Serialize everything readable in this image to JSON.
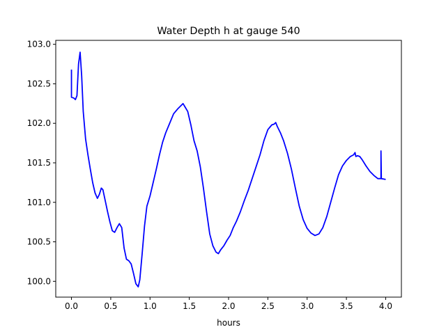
{
  "chart_data": {
    "type": "line",
    "title": "Water Depth h at gauge 540",
    "xlabel": "hours",
    "ylabel": "",
    "xlim": [
      -0.2,
      4.2
    ],
    "ylim": [
      99.8,
      103.05
    ],
    "x_ticks": [
      0.0,
      0.5,
      1.0,
      1.5,
      2.0,
      2.5,
      3.0,
      3.5,
      4.0
    ],
    "x_tick_labels": [
      "0.0",
      "0.5",
      "1.0",
      "1.5",
      "2.0",
      "2.5",
      "3.0",
      "3.5",
      "4.0"
    ],
    "y_ticks": [
      100.0,
      100.5,
      101.0,
      101.5,
      102.0,
      102.5,
      103.0
    ],
    "y_tick_labels": [
      "100.0",
      "100.5",
      "101.0",
      "101.5",
      "102.0",
      "102.5",
      "103.0"
    ],
    "grid": false,
    "legend": "none",
    "series": [
      {
        "color": "#0000ff",
        "points": [
          [
            0.0,
            102.68
          ],
          [
            0.0,
            102.33
          ],
          [
            0.03,
            102.32
          ],
          [
            0.05,
            102.3
          ],
          [
            0.07,
            102.35
          ],
          [
            0.09,
            102.75
          ],
          [
            0.11,
            102.9
          ],
          [
            0.13,
            102.6
          ],
          [
            0.15,
            102.15
          ],
          [
            0.18,
            101.8
          ],
          [
            0.21,
            101.6
          ],
          [
            0.24,
            101.42
          ],
          [
            0.27,
            101.25
          ],
          [
            0.3,
            101.12
          ],
          [
            0.33,
            101.05
          ],
          [
            0.355,
            101.1
          ],
          [
            0.38,
            101.18
          ],
          [
            0.4,
            101.16
          ],
          [
            0.43,
            101.02
          ],
          [
            0.46,
            100.88
          ],
          [
            0.49,
            100.75
          ],
          [
            0.52,
            100.64
          ],
          [
            0.55,
            100.62
          ],
          [
            0.58,
            100.68
          ],
          [
            0.61,
            100.73
          ],
          [
            0.64,
            100.68
          ],
          [
            0.67,
            100.42
          ],
          [
            0.7,
            100.28
          ],
          [
            0.73,
            100.26
          ],
          [
            0.76,
            100.22
          ],
          [
            0.79,
            100.1
          ],
          [
            0.82,
            99.97
          ],
          [
            0.85,
            99.93
          ],
          [
            0.87,
            100.02
          ],
          [
            0.9,
            100.35
          ],
          [
            0.93,
            100.7
          ],
          [
            0.96,
            100.95
          ],
          [
            1.0,
            101.08
          ],
          [
            1.04,
            101.25
          ],
          [
            1.08,
            101.42
          ],
          [
            1.12,
            101.6
          ],
          [
            1.16,
            101.76
          ],
          [
            1.2,
            101.88
          ],
          [
            1.25,
            102.0
          ],
          [
            1.3,
            102.12
          ],
          [
            1.35,
            102.18
          ],
          [
            1.39,
            102.22
          ],
          [
            1.42,
            102.25
          ],
          [
            1.45,
            102.2
          ],
          [
            1.48,
            102.15
          ],
          [
            1.52,
            101.98
          ],
          [
            1.56,
            101.78
          ],
          [
            1.6,
            101.65
          ],
          [
            1.64,
            101.45
          ],
          [
            1.68,
            101.18
          ],
          [
            1.72,
            100.88
          ],
          [
            1.76,
            100.6
          ],
          [
            1.8,
            100.45
          ],
          [
            1.84,
            100.37
          ],
          [
            1.87,
            100.35
          ],
          [
            1.9,
            100.4
          ],
          [
            1.94,
            100.45
          ],
          [
            1.98,
            100.52
          ],
          [
            2.02,
            100.58
          ],
          [
            2.06,
            100.68
          ],
          [
            2.1,
            100.76
          ],
          [
            2.15,
            100.88
          ],
          [
            2.2,
            101.02
          ],
          [
            2.25,
            101.15
          ],
          [
            2.3,
            101.3
          ],
          [
            2.35,
            101.45
          ],
          [
            2.4,
            101.6
          ],
          [
            2.45,
            101.78
          ],
          [
            2.5,
            101.92
          ],
          [
            2.55,
            101.98
          ],
          [
            2.58,
            101.99
          ],
          [
            2.6,
            102.01
          ],
          [
            2.62,
            101.96
          ],
          [
            2.66,
            101.88
          ],
          [
            2.7,
            101.78
          ],
          [
            2.75,
            101.62
          ],
          [
            2.8,
            101.42
          ],
          [
            2.85,
            101.18
          ],
          [
            2.9,
            100.95
          ],
          [
            2.95,
            100.78
          ],
          [
            3.0,
            100.67
          ],
          [
            3.05,
            100.61
          ],
          [
            3.1,
            100.58
          ],
          [
            3.15,
            100.6
          ],
          [
            3.2,
            100.68
          ],
          [
            3.25,
            100.82
          ],
          [
            3.3,
            101.0
          ],
          [
            3.35,
            101.18
          ],
          [
            3.4,
            101.35
          ],
          [
            3.45,
            101.46
          ],
          [
            3.5,
            101.53
          ],
          [
            3.55,
            101.58
          ],
          [
            3.59,
            101.6
          ],
          [
            3.61,
            101.63
          ],
          [
            3.62,
            101.58
          ],
          [
            3.64,
            101.59
          ],
          [
            3.67,
            101.58
          ],
          [
            3.7,
            101.54
          ],
          [
            3.75,
            101.46
          ],
          [
            3.8,
            101.39
          ],
          [
            3.85,
            101.34
          ],
          [
            3.9,
            101.3
          ],
          [
            3.94,
            101.3
          ],
          [
            3.94,
            101.65
          ],
          [
            3.945,
            101.3
          ],
          [
            4.0,
            101.29
          ]
        ]
      }
    ]
  }
}
